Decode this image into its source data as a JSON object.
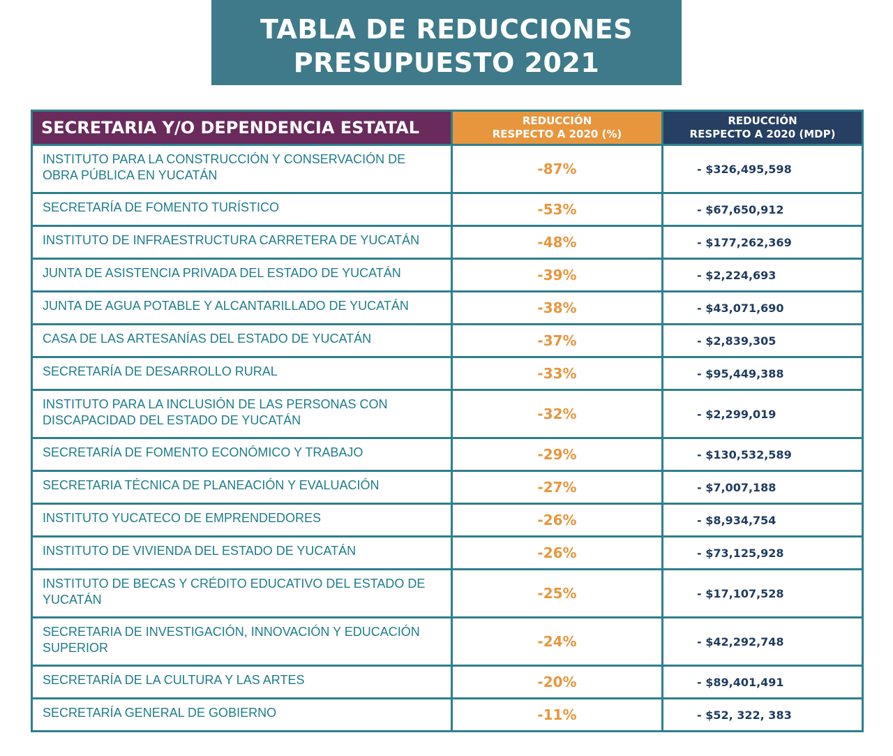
{
  "title": {
    "line1": "TABLA DE REDUCCIONES",
    "line2": "PRESUPUESTO 2021"
  },
  "colors": {
    "title_bg": "#3e7a8a",
    "header_col1_bg": "#6a2a5c",
    "header_col2_bg": "#e8963e",
    "header_col3_bg": "#263f63",
    "border": "#2e7f8c",
    "name_text": "#1f7c8a",
    "percent_text": "#e8963e",
    "amount_text": "#1f3b5e"
  },
  "table": {
    "headers": {
      "col1": "SECRETARIA Y/O DEPENDENCIA ESTATAL",
      "col2_line1": "REDUCCIÓN",
      "col2_line2": "RESPECTO A 2020 (%)",
      "col3_line1": "REDUCCIÓN",
      "col3_line2": "RESPECTO A 2020 (MDP)"
    },
    "rows": [
      {
        "name_line1": "INSTITUTO PARA LA CONSTRUCCIÓN Y CONSERVACIÓN DE",
        "name_line2": "OBRA PÚBLICA EN YUCATÁN",
        "percent": "-87%",
        "amount": "- $326,495,598"
      },
      {
        "name_line1": "SECRETARÍA DE FOMENTO TURÍSTICO",
        "name_line2": "",
        "percent": "-53%",
        "amount": "- $67,650,912"
      },
      {
        "name_line1": "INSTITUTO DE INFRAESTRUCTURA CARRETERA DE YUCATÁN",
        "name_line2": "",
        "percent": "-48%",
        "amount": "- $177,262,369"
      },
      {
        "name_line1": "JUNTA DE  ASISTENCIA PRIVADA DEL ESTADO DE YUCATÁN",
        "name_line2": "",
        "percent": "-39%",
        "amount": "- $2,224,693"
      },
      {
        "name_line1": "JUNTA DE AGUA POTABLE Y ALCANTARILLADO DE YUCATÁN",
        "name_line2": "",
        "percent": "-38%",
        "amount": "- $43,071,690"
      },
      {
        "name_line1": "CASA DE LAS ARTESANÍAS DEL ESTADO DE YUCATÁN",
        "name_line2": "",
        "percent": "-37%",
        "amount": "- $2,839,305"
      },
      {
        "name_line1": "SECRETARÍA DE DESARROLLO RURAL",
        "name_line2": "",
        "percent": "-33%",
        "amount": "- $95,449,388"
      },
      {
        "name_line1": "INSTITUTO PARA LA INCLUSIÓN DE LAS PERSONAS CON",
        "name_line2": "DISCAPACIDAD DEL ESTADO DE YUCATÁN",
        "percent": "-32%",
        "amount": "- $2,299,019"
      },
      {
        "name_line1": "SECRETARÍA DE FOMENTO ECONÓMICO Y TRABAJO",
        "name_line2": "",
        "percent": "-29%",
        "amount": "- $130,532,589"
      },
      {
        "name_line1": "SECRETARIA TÉCNICA DE PLANEACIÓN Y EVALUACIÓN",
        "name_line2": "",
        "percent": "-27%",
        "amount": "- $7,007,188"
      },
      {
        "name_line1": "INSTITUTO YUCATECO DE EMPRENDEDORES",
        "name_line2": "",
        "percent": "-26%",
        "amount": "- $8,934,754"
      },
      {
        "name_line1": "INSTITUTO DE VIVIENDA DEL ESTADO DE YUCATÁN",
        "name_line2": "",
        "percent": "-26%",
        "amount": "- $73,125,928"
      },
      {
        "name_line1": "INSTITUTO DE BECAS  Y CRÉDITO EDUCATIVO DEL ESTADO DE",
        "name_line2": "YUCATÁN",
        "percent": "-25%",
        "amount": "- $17,107,528"
      },
      {
        "name_line1": "SECRETARIA DE INVESTIGACIÓN, INNOVACIÓN Y EDUCACIÓN",
        "name_line2": "SUPERIOR",
        "percent": "-24%",
        "amount": "- $42,292,748"
      },
      {
        "name_line1": "SECRETARÍA DE LA CULTURA Y LAS ARTES",
        "name_line2": "",
        "percent": "-20%",
        "amount": "- $89,401,491"
      },
      {
        "name_line1": "SECRETARÍA GENERAL DE GOBIERNO",
        "name_line2": "",
        "percent": "-11%",
        "amount": "- $52, 322, 383"
      }
    ]
  }
}
